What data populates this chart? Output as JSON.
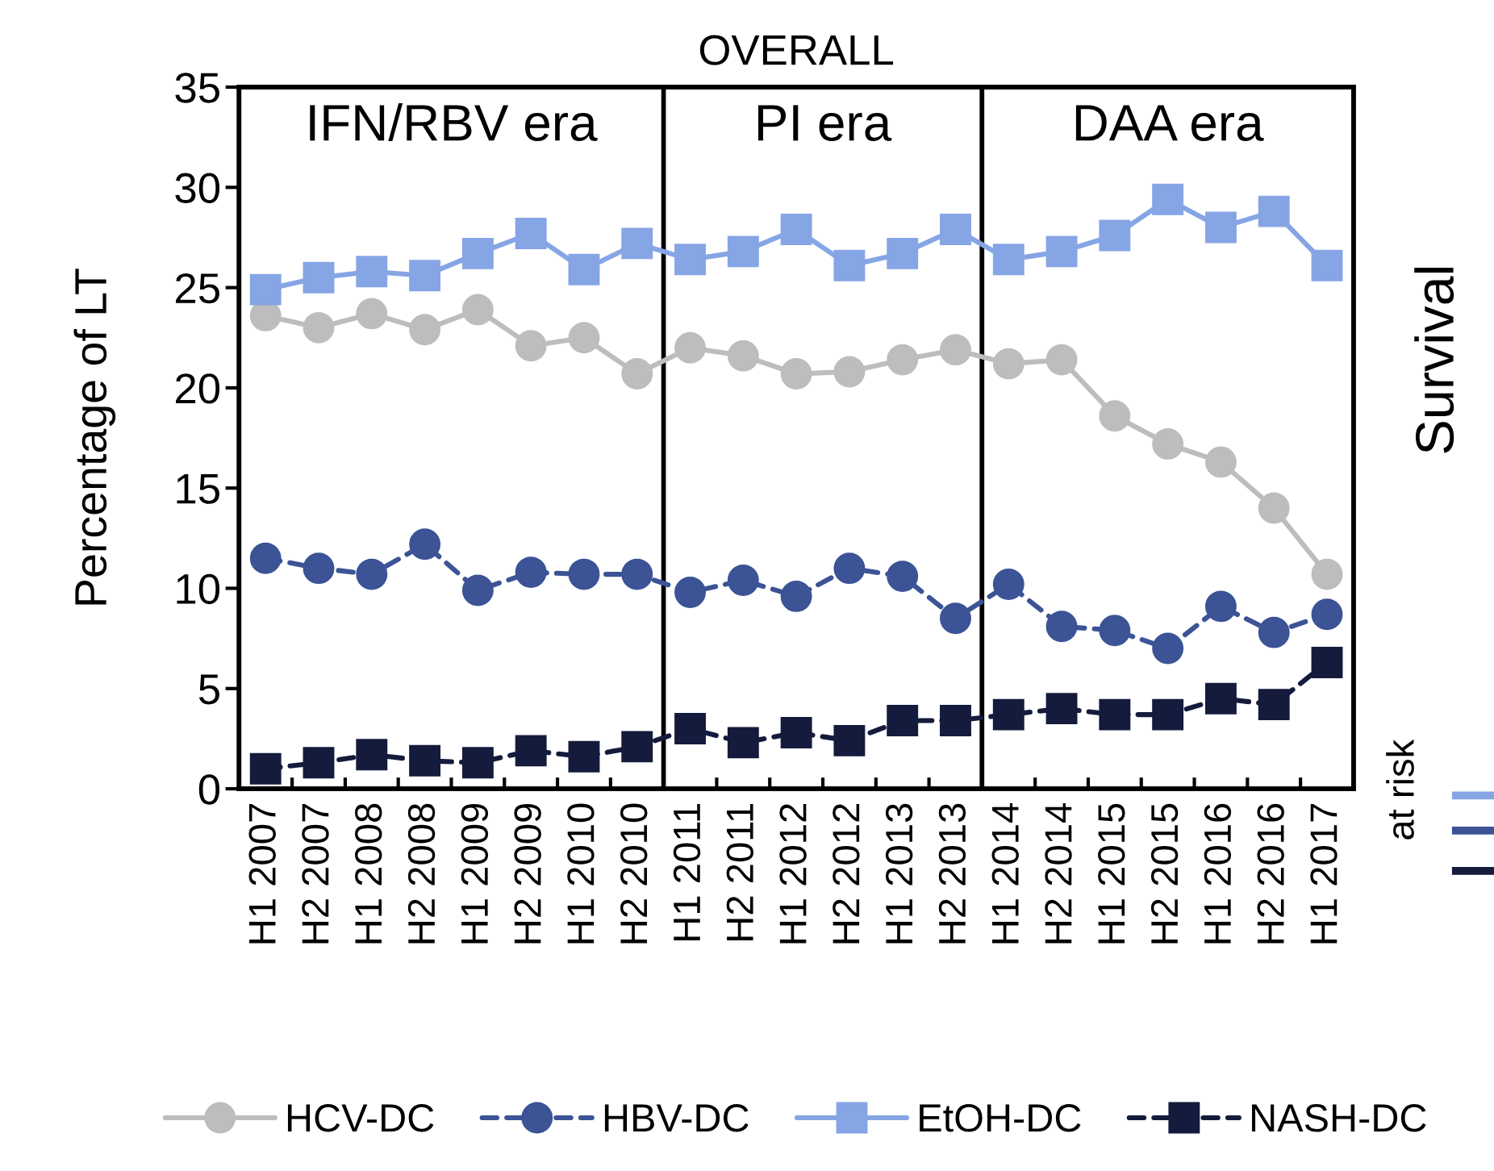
{
  "chart_data": [
    {
      "type": "line",
      "title": "OVERALL",
      "ylabel": "Percentage of LT",
      "categories": [
        "H1 2007",
        "H2 2007",
        "H1 2008",
        "H2 2008",
        "H1 2009",
        "H2 2009",
        "H1 2010",
        "H2 2010",
        "H1 2011",
        "H2 2011",
        "H1 2012",
        "H2 2012",
        "H1 2013",
        "H2 2013",
        "H1 2014",
        "H2 2014",
        "H1 2015",
        "H2 2015",
        "H1 2016",
        "H2 2016",
        "H1 2017"
      ],
      "series": [
        {
          "name": "HCV-DC",
          "color": "#bdbdbd",
          "marker": "circle",
          "line_style": "solid",
          "values": [
            23.6,
            23.0,
            23.7,
            22.9,
            23.9,
            22.1,
            22.5,
            20.7,
            22.0,
            21.6,
            20.7,
            20.8,
            21.4,
            21.9,
            21.2,
            21.4,
            18.6,
            17.2,
            16.3,
            14.0,
            10.7
          ]
        },
        {
          "name": "HBV-DC",
          "color": "#3c5396",
          "marker": "circle",
          "line_style": "dashed",
          "values": [
            11.5,
            11.0,
            10.7,
            12.2,
            9.9,
            10.8,
            10.7,
            10.7,
            9.8,
            10.4,
            9.6,
            11.0,
            10.6,
            8.5,
            10.2,
            8.1,
            7.9,
            7.0,
            9.1,
            7.8,
            8.7
          ]
        },
        {
          "name": "EtOH-DC",
          "color": "#86a5e5",
          "marker": "square",
          "line_style": "solid",
          "values": [
            24.9,
            25.5,
            25.8,
            25.6,
            26.7,
            27.7,
            25.9,
            27.2,
            26.4,
            26.8,
            27.9,
            26.1,
            26.7,
            27.9,
            26.4,
            26.8,
            27.6,
            29.4,
            28.0,
            28.8,
            26.1
          ]
        },
        {
          "name": "NASH-DC",
          "color": "#141b3c",
          "marker": "square",
          "line_style": "dashed",
          "values": [
            1.0,
            1.3,
            1.7,
            1.4,
            1.3,
            1.9,
            1.6,
            2.1,
            3.0,
            2.3,
            2.8,
            2.4,
            3.4,
            3.4,
            3.7,
            4.0,
            3.7,
            3.7,
            4.5,
            4.2,
            6.3
          ]
        }
      ],
      "ylim": [
        0,
        35
      ],
      "yticks": [
        0,
        5,
        10,
        15,
        20,
        25,
        30,
        35
      ],
      "bands": [
        {
          "axis": "x",
          "from": "H1 2007",
          "to": "H2 2010",
          "label": "IFN/RBV era",
          "color": "#ffffff"
        },
        {
          "axis": "x",
          "from": "H1 2011",
          "to": "H2 2013",
          "label": "PI era",
          "color": "#ffffff"
        },
        {
          "axis": "x",
          "from": "H1 2014",
          "to": "H1 2017",
          "label": "DAA era",
          "color": "#ffffff"
        }
      ],
      "legend": "bottom"
    },
    {
      "type": "other",
      "ylabel": "Survival",
      "annotations": [
        "at risk"
      ]
    }
  ]
}
